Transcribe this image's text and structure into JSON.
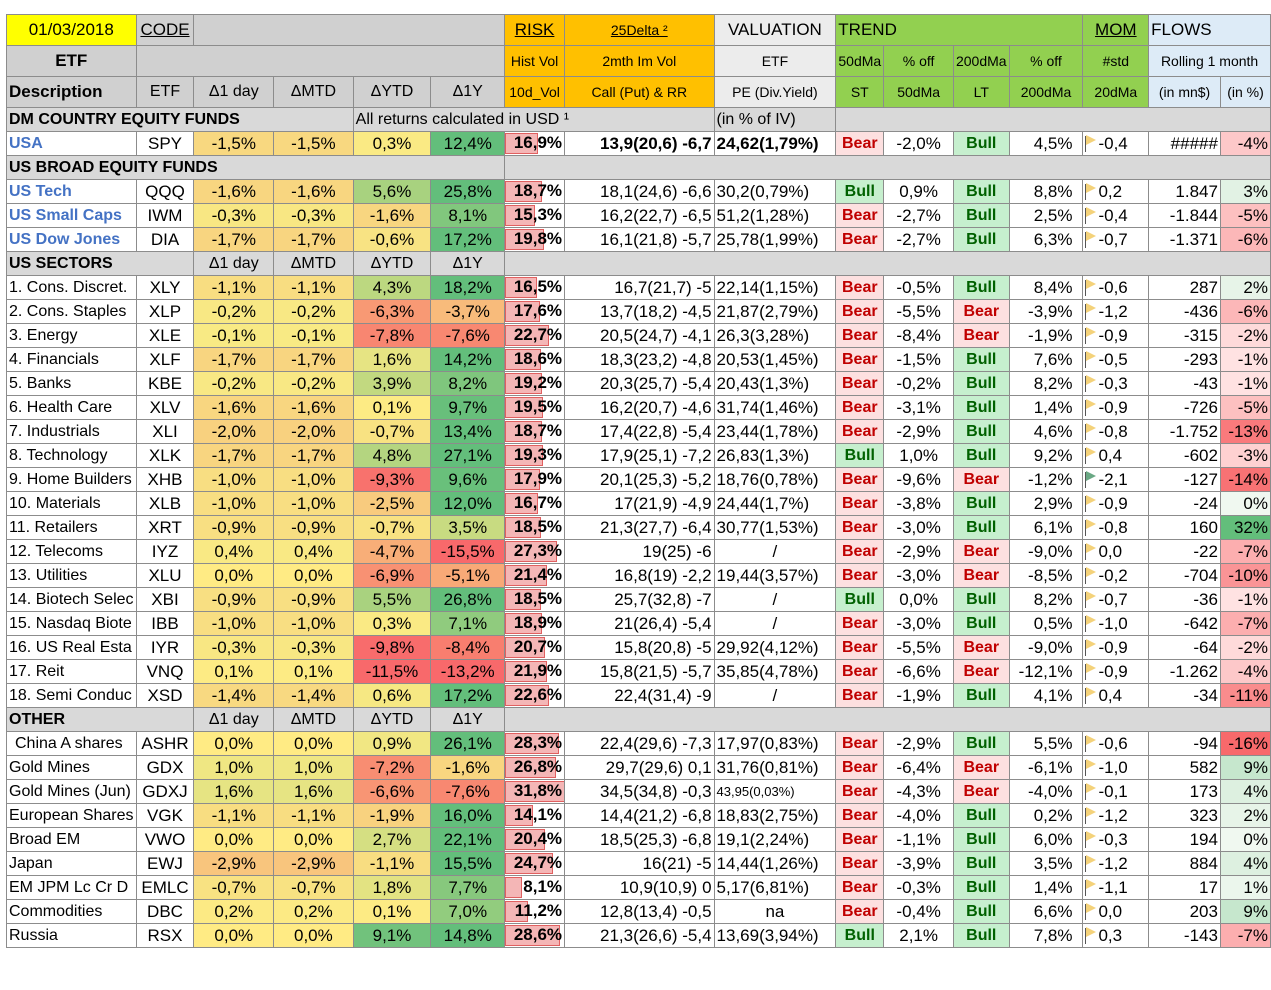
{
  "header": {
    "date": "01/03/2018",
    "code": "CODE",
    "etf": "ETF",
    "description": "Description",
    "etf2": "ETF",
    "d1day": "Δ1 day",
    "dmtd": "ΔMTD",
    "dytd": "ΔYTD",
    "d1y": "Δ1Y",
    "risk": "RISK",
    "delta": "25Delta ²",
    "hist_vol": "Hist Vol",
    "im_vol": "2mth Im Vol",
    "vol10d": "10d_Vol",
    "callput": "Call (Put) & RR",
    "valuation": "VALUATION",
    "val_etf": "ETF",
    "pe": "PE (Div.Yield)",
    "trend": "TREND",
    "dma50": "50dMa",
    "off1": "% off",
    "dma200": "200dMa",
    "off2": "% off",
    "st": "ST",
    "dma50b": "50dMa",
    "lt": "LT",
    "dma200b": "200dMa",
    "mom": "MOM",
    "std": "#std",
    "dma20": "20dMa",
    "flows": "FLOWS",
    "rolling": "Rolling 1 month",
    "inmn": "(in mn$)",
    "inpct": "(in %)"
  },
  "sections": [
    {
      "title": "DM COUNTRY EQUITY FUNDS",
      "note": "All returns calculated in USD ¹",
      "note2": "(in % of IV)",
      "rows": [
        {
          "desc": "USA",
          "code": "SPY",
          "link": true,
          "d1": "-1,5%",
          "mtd": "-1,5%",
          "ytd": "0,3%",
          "y1": "12,4%",
          "risk": "16,9%",
          "risk_val": 16.9,
          "callput": "13,9(20,6) -6,7",
          "pe": "24,62(1,79%)",
          "st": "Bear",
          "off50": "-2,0%",
          "lt": "Bull",
          "off200": "4,5%",
          "mom": "-0,4",
          "flow": "#####",
          "flowpct": "-4%",
          "boldvals": true
        }
      ]
    },
    {
      "title": "US BROAD EQUITY FUNDS",
      "rows": [
        {
          "desc": "US Tech",
          "code": "QQQ",
          "link": true,
          "d1": "-1,6%",
          "mtd": "-1,6%",
          "ytd": "5,6%",
          "y1": "25,8%",
          "risk": "18,7%",
          "risk_val": 18.7,
          "callput": "18,1(24,6) -6,6",
          "pe": "30,2(0,79%)",
          "st": "Bull",
          "off50": "0,9%",
          "lt": "Bull",
          "off200": "8,8%",
          "mom": "0,2",
          "flow": "1.847",
          "flowpct": "3%"
        },
        {
          "desc": "US Small Caps",
          "code": "IWM",
          "link": true,
          "d1": "-0,3%",
          "mtd": "-0,3%",
          "ytd": "-1,6%",
          "y1": "8,1%",
          "risk": "15,3%",
          "risk_val": 15.3,
          "callput": "16,2(22,7) -6,5",
          "pe": "51,2(1,28%)",
          "st": "Bear",
          "off50": "-2,7%",
          "lt": "Bull",
          "off200": "2,5%",
          "mom": "-0,4",
          "flow": "-1.844",
          "flowpct": "-5%"
        },
        {
          "desc": "US Dow Jones",
          "code": "DIA",
          "link": true,
          "d1": "-1,7%",
          "mtd": "-1,7%",
          "ytd": "-0,6%",
          "y1": "17,2%",
          "risk": "19,8%",
          "risk_val": 19.8,
          "callput": "16,1(21,8) -5,7",
          "pe": "25,78(1,99%)",
          "st": "Bear",
          "off50": "-2,7%",
          "lt": "Bull",
          "off200": "6,3%",
          "mom": "-0,7",
          "flow": "-1.371",
          "flowpct": "-6%"
        }
      ]
    },
    {
      "title": "US SECTORS",
      "sub": true,
      "rows": [
        {
          "desc": "1. Cons. Discret.",
          "code": "XLY",
          "d1": "-1,1%",
          "mtd": "-1,1%",
          "ytd": "4,3%",
          "y1": "18,2%",
          "risk": "16,5%",
          "risk_val": 16.5,
          "callput": "16,7(21,7) -5",
          "pe": "22,14(1,15%)",
          "st": "Bear",
          "off50": "-0,5%",
          "lt": "Bull",
          "off200": "8,4%",
          "mom": "-0,6",
          "flow": "287",
          "flowpct": "2%"
        },
        {
          "desc": "2. Cons. Staples",
          "code": "XLP",
          "d1": "-0,2%",
          "mtd": "-0,2%",
          "ytd": "-6,3%",
          "y1": "-3,7%",
          "risk": "17,6%",
          "risk_val": 17.6,
          "callput": "13,7(18,2) -4,5",
          "pe": "21,87(2,79%)",
          "st": "Bear",
          "off50": "-5,5%",
          "lt": "Bear",
          "off200": "-3,9%",
          "mom": "-1,2",
          "flow": "-436",
          "flowpct": "-6%"
        },
        {
          "desc": "3. Energy",
          "code": "XLE",
          "d1": "-0,1%",
          "mtd": "-0,1%",
          "ytd": "-7,8%",
          "y1": "-7,6%",
          "risk": "22,7%",
          "risk_val": 22.7,
          "callput": "20,5(24,7) -4,1",
          "pe": "26,3(3,28%)",
          "st": "Bear",
          "off50": "-8,4%",
          "lt": "Bear",
          "off200": "-1,9%",
          "mom": "-0,9",
          "flow": "-315",
          "flowpct": "-2%"
        },
        {
          "desc": "4. Financials",
          "code": "XLF",
          "d1": "-1,7%",
          "mtd": "-1,7%",
          "ytd": "1,6%",
          "y1": "14,2%",
          "risk": "18,6%",
          "risk_val": 18.6,
          "callput": "18,3(23,2) -4,8",
          "pe": "20,53(1,45%)",
          "st": "Bear",
          "off50": "-1,5%",
          "lt": "Bull",
          "off200": "7,6%",
          "mom": "-0,5",
          "flow": "-293",
          "flowpct": "-1%"
        },
        {
          "desc": "5. Banks",
          "code": "KBE",
          "d1": "-0,2%",
          "mtd": "-0,2%",
          "ytd": "3,9%",
          "y1": "8,2%",
          "risk": "19,2%",
          "risk_val": 19.2,
          "callput": "20,3(25,7) -5,4",
          "pe": "20,43(1,3%)",
          "st": "Bear",
          "off50": "-0,2%",
          "lt": "Bull",
          "off200": "8,2%",
          "mom": "-0,3",
          "flow": "-43",
          "flowpct": "-1%"
        },
        {
          "desc": "6. Health Care",
          "code": "XLV",
          "d1": "-1,6%",
          "mtd": "-1,6%",
          "ytd": "0,1%",
          "y1": "9,7%",
          "risk": "19,5%",
          "risk_val": 19.5,
          "callput": "16,2(20,7) -4,6",
          "pe": "31,74(1,46%)",
          "st": "Bear",
          "off50": "-3,1%",
          "lt": "Bull",
          "off200": "1,4%",
          "mom": "-0,9",
          "flow": "-726",
          "flowpct": "-5%"
        },
        {
          "desc": "7. Industrials",
          "code": "XLI",
          "d1": "-2,0%",
          "mtd": "-2,0%",
          "ytd": "-0,7%",
          "y1": "13,4%",
          "risk": "18,7%",
          "risk_val": 18.7,
          "callput": "17,4(22,8) -5,4",
          "pe": "23,44(1,78%)",
          "st": "Bear",
          "off50": "-2,9%",
          "lt": "Bull",
          "off200": "4,6%",
          "mom": "-0,8",
          "flow": "-1.752",
          "flowpct": "-13%"
        },
        {
          "desc": "8. Technology",
          "code": "XLK",
          "d1": "-1,7%",
          "mtd": "-1,7%",
          "ytd": "4,8%",
          "y1": "27,1%",
          "risk": "19,3%",
          "risk_val": 19.3,
          "callput": "17,9(25,1) -7,2",
          "pe": "26,83(1,3%)",
          "st": "Bull",
          "off50": "1,0%",
          "lt": "Bull",
          "off200": "9,2%",
          "mom": "0,4",
          "flow": "-602",
          "flowpct": "-3%"
        },
        {
          "desc": "9. Home Builders",
          "code": "XHB",
          "d1": "-1,0%",
          "mtd": "-1,0%",
          "ytd": "-9,3%",
          "y1": "9,6%",
          "risk": "17,9%",
          "risk_val": 17.9,
          "callput": "20,1(25,3) -5,2",
          "pe": "18,76(0,78%)",
          "st": "Bear",
          "off50": "-9,6%",
          "lt": "Bear",
          "off200": "-1,2%",
          "mom": "-2,1",
          "flow": "-127",
          "flowpct": "-14%",
          "flag_green": true
        },
        {
          "desc": "10. Materials",
          "code": "XLB",
          "d1": "-1,0%",
          "mtd": "-1,0%",
          "ytd": "-2,5%",
          "y1": "12,0%",
          "risk": "16,7%",
          "risk_val": 16.7,
          "callput": "17(21,9) -4,9",
          "pe": "24,44(1,7%)",
          "st": "Bear",
          "off50": "-3,8%",
          "lt": "Bull",
          "off200": "2,9%",
          "mom": "-0,9",
          "flow": "-24",
          "flowpct": "0%"
        },
        {
          "desc": "11. Retailers",
          "code": "XRT",
          "d1": "-0,9%",
          "mtd": "-0,9%",
          "ytd": "-0,7%",
          "y1": "3,5%",
          "risk": "18,5%",
          "risk_val": 18.5,
          "callput": "21,3(27,7) -6,4",
          "pe": "30,77(1,53%)",
          "st": "Bear",
          "off50": "-3,0%",
          "lt": "Bull",
          "off200": "6,1%",
          "mom": "-0,8",
          "flow": "160",
          "flowpct": "32%"
        },
        {
          "desc": "12. Telecoms",
          "code": "IYZ",
          "d1": "0,4%",
          "mtd": "0,4%",
          "ytd": "-4,7%",
          "y1": "-15,5%",
          "risk": "27,3%",
          "risk_val": 27.3,
          "callput": "19(25) -6",
          "pe": "/",
          "st": "Bear",
          "off50": "-2,9%",
          "lt": "Bear",
          "off200": "-9,0%",
          "mom": "0,0",
          "flow": "-22",
          "flowpct": "-7%"
        },
        {
          "desc": "13. Utilities",
          "code": "XLU",
          "d1": "0,0%",
          "mtd": "0,0%",
          "ytd": "-6,9%",
          "y1": "-5,1%",
          "risk": "21,4%",
          "risk_val": 21.4,
          "callput": "16,8(19) -2,2",
          "pe": "19,44(3,57%)",
          "st": "Bear",
          "off50": "-3,0%",
          "lt": "Bear",
          "off200": "-8,5%",
          "mom": "-0,2",
          "flow": "-704",
          "flowpct": "-10%"
        },
        {
          "desc": "14. Biotech Selec",
          "code": "XBI",
          "d1": "-0,9%",
          "mtd": "-0,9%",
          "ytd": "5,5%",
          "y1": "26,8%",
          "risk": "18,5%",
          "risk_val": 18.5,
          "callput": "25,7(32,8) -7",
          "pe": "/",
          "st": "Bull",
          "off50": "0,0%",
          "lt": "Bull",
          "off200": "8,2%",
          "mom": "-0,7",
          "flow": "-36",
          "flowpct": "-1%"
        },
        {
          "desc": "15. Nasdaq Biote",
          "code": "IBB",
          "d1": "-1,0%",
          "mtd": "-1,0%",
          "ytd": "0,3%",
          "y1": "7,1%",
          "risk": "18,9%",
          "risk_val": 18.9,
          "callput": "21(26,4) -5,4",
          "pe": "/",
          "st": "Bear",
          "off50": "-3,0%",
          "lt": "Bull",
          "off200": "0,5%",
          "mom": "-1,0",
          "flow": "-642",
          "flowpct": "-7%"
        },
        {
          "desc": "16. US Real Esta",
          "code": "IYR",
          "d1": "-0,3%",
          "mtd": "-0,3%",
          "ytd": "-9,8%",
          "y1": "-8,4%",
          "risk": "20,7%",
          "risk_val": 20.7,
          "callput": "15,8(20,8) -5",
          "pe": "29,92(4,12%)",
          "st": "Bear",
          "off50": "-5,5%",
          "lt": "Bear",
          "off200": "-9,0%",
          "mom": "-0,9",
          "flow": "-64",
          "flowpct": "-2%"
        },
        {
          "desc": "17. Reit",
          "code": "VNQ",
          "d1": "0,1%",
          "mtd": "0,1%",
          "ytd": "-11,5%",
          "y1": "-13,2%",
          "risk": "21,9%",
          "risk_val": 21.9,
          "callput": "15,8(21,5) -5,7",
          "pe": "35,85(4,78%)",
          "st": "Bear",
          "off50": "-6,6%",
          "lt": "Bear",
          "off200": "-12,1%",
          "mom": "-0,9",
          "flow": "-1.262",
          "flowpct": "-4%"
        },
        {
          "desc": "18. Semi Conduc",
          "code": "XSD",
          "d1": "-1,4%",
          "mtd": "-1,4%",
          "ytd": "0,6%",
          "y1": "17,2%",
          "risk": "22,6%",
          "risk_val": 22.6,
          "callput": "22,4(31,4) -9",
          "pe": "/",
          "st": "Bear",
          "off50": "-1,9%",
          "lt": "Bull",
          "off200": "4,1%",
          "mom": "0,4",
          "flow": "-34",
          "flowpct": "-11%"
        }
      ]
    },
    {
      "title": "OTHER",
      "sub": true,
      "rows": [
        {
          "desc": "China A shares",
          "code": "ASHR",
          "d1": "0,0%",
          "mtd": "0,0%",
          "ytd": "0,9%",
          "y1": "26,1%",
          "risk": "28,3%",
          "risk_val": 28.3,
          "callput": "22,4(29,6) -7,3",
          "pe": "17,97(0,83%)",
          "st": "Bear",
          "off50": "-2,9%",
          "lt": "Bull",
          "off200": "5,5%",
          "mom": "-0,6",
          "flow": "-94",
          "flowpct": "-16%",
          "indent": true
        },
        {
          "desc": "Gold Mines",
          "code": "GDX",
          "d1": "1,0%",
          "mtd": "1,0%",
          "ytd": "-7,2%",
          "y1": "-1,6%",
          "risk": "26,8%",
          "risk_val": 26.8,
          "callput": "29,7(29,6) 0,1",
          "pe": "31,76(0,81%)",
          "st": "Bear",
          "off50": "-6,4%",
          "lt": "Bear",
          "off200": "-6,1%",
          "mom": "-1,0",
          "flow": "582",
          "flowpct": "9%"
        },
        {
          "desc": "Gold Mines (Jun)",
          "code": "GDXJ",
          "d1": "1,6%",
          "mtd": "1,6%",
          "ytd": "-6,6%",
          "y1": "-7,6%",
          "risk": "31,8%",
          "risk_val": 31.8,
          "callput": "34,5(34,8) -0,3",
          "pe": "43,95(0,03%)",
          "pe_small": true,
          "st": "Bear",
          "off50": "-4,3%",
          "lt": "Bear",
          "off200": "-4,0%",
          "mom": "-0,1",
          "flow": "173",
          "flowpct": "4%"
        },
        {
          "desc": "European Shares",
          "code": "VGK",
          "d1": "-1,1%",
          "mtd": "-1,1%",
          "ytd": "-1,9%",
          "y1": "16,0%",
          "risk": "14,1%",
          "risk_val": 14.1,
          "callput": "14,4(21,2) -6,8",
          "pe": "18,83(2,75%)",
          "st": "Bear",
          "off50": "-4,0%",
          "lt": "Bull",
          "off200": "0,2%",
          "mom": "-1,2",
          "flow": "323",
          "flowpct": "2%"
        },
        {
          "desc": "Broad EM",
          "code": "VWO",
          "d1": "0,0%",
          "mtd": "0,0%",
          "ytd": "2,7%",
          "y1": "22,1%",
          "risk": "20,4%",
          "risk_val": 20.4,
          "callput": "18,5(25,3) -6,8",
          "pe": "19,1(2,24%)",
          "st": "Bear",
          "off50": "-1,1%",
          "lt": "Bull",
          "off200": "6,0%",
          "mom": "-0,3",
          "flow": "194",
          "flowpct": "0%"
        },
        {
          "desc": "Japan",
          "code": "EWJ",
          "d1": "-2,9%",
          "mtd": "-2,9%",
          "ytd": "-1,1%",
          "y1": "15,5%",
          "risk": "24,7%",
          "risk_val": 24.7,
          "callput": "16(21) -5",
          "pe": "14,44(1,26%)",
          "st": "Bear",
          "off50": "-3,9%",
          "lt": "Bull",
          "off200": "3,5%",
          "mom": "-1,2",
          "flow": "884",
          "flowpct": "4%"
        },
        {
          "desc": "EM JPM Lc Cr D",
          "code": "EMLC",
          "d1": "-0,7%",
          "mtd": "-0,7%",
          "ytd": "1,8%",
          "y1": "7,7%",
          "risk": "8,1%",
          "risk_val": 8.1,
          "callput": "10,9(10,9) 0",
          "pe": "5,17(6,81%)",
          "st": "Bear",
          "off50": "-0,3%",
          "lt": "Bull",
          "off200": "1,4%",
          "mom": "-1,1",
          "flow": "17",
          "flowpct": "1%"
        },
        {
          "desc": "Commodities",
          "code": "DBC",
          "d1": "0,2%",
          "mtd": "0,2%",
          "ytd": "0,1%",
          "y1": "7,0%",
          "risk": "11,2%",
          "risk_val": 11.2,
          "callput": "12,8(13,4) -0,5",
          "pe": "na",
          "st": "Bear",
          "off50": "-0,4%",
          "lt": "Bull",
          "off200": "6,6%",
          "mom": "0,0",
          "flow": "203",
          "flowpct": "9%"
        },
        {
          "desc": "Russia",
          "code": "RSX",
          "d1": "0,0%",
          "mtd": "0,0%",
          "ytd": "9,1%",
          "y1": "14,8%",
          "risk": "28,6%",
          "risk_val": 28.6,
          "callput": "21,3(26,6) -5,4",
          "pe": "13,69(3,94%)",
          "st": "Bull",
          "off50": "2,1%",
          "lt": "Bull",
          "off200": "7,8%",
          "mom": "0,3",
          "flow": "-143",
          "flowpct": "-7%"
        }
      ]
    }
  ],
  "sub_headers": {
    "d1": "Δ1 day",
    "mtd": "ΔMTD",
    "ytd": "ΔYTD",
    "y1": "Δ1Y"
  },
  "colors": {
    "yellow": "#ffff00",
    "header_grey": "#d0d0d0",
    "risk_orange": "#ffc000",
    "trend_green": "#92d050",
    "flows_blue": "#ddebf7",
    "bear_red": "#c00000",
    "bull_green": "#006100"
  }
}
